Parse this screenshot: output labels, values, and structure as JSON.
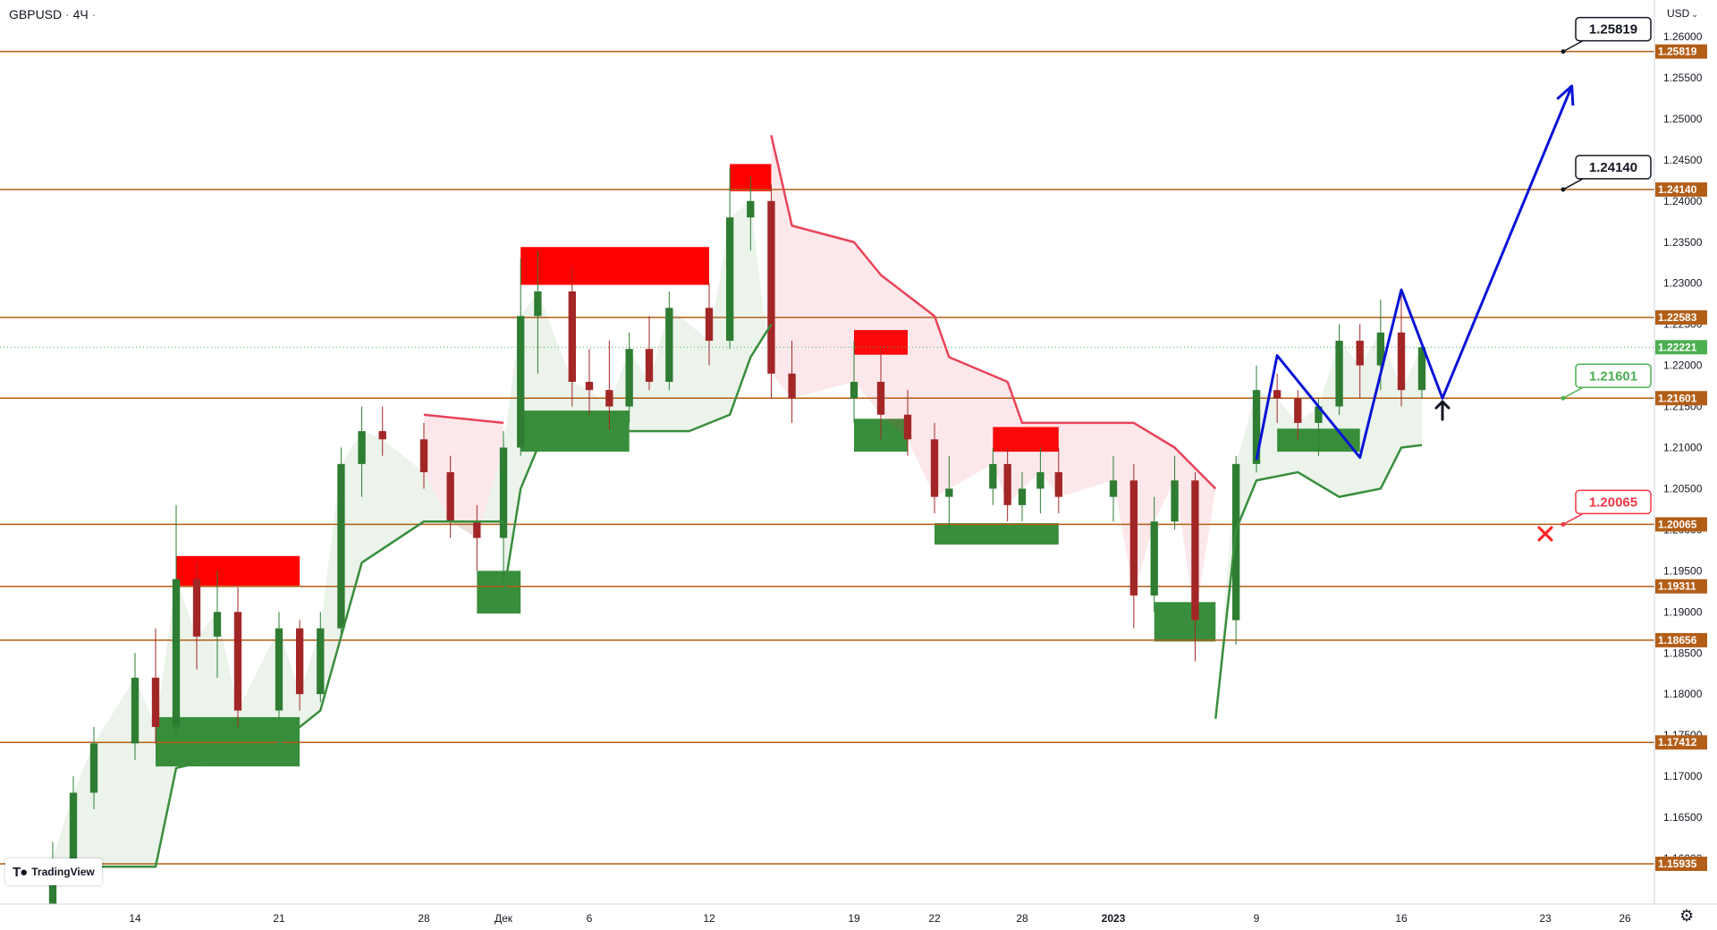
{
  "header": {
    "symbol": "GBPUSD",
    "timeframe": "4Ч"
  },
  "currency_menu": {
    "label": "USD"
  },
  "branding": {
    "logo_text": "TradingView"
  },
  "colors": {
    "level_line": "#b35e17",
    "price_tag": "#b35e17",
    "supply_zone": "#ff0000",
    "demand_zone": "#388e3c",
    "trail_up": "#388e3c",
    "trail_down": "#e84359",
    "projection": "#0a14d6",
    "candle_up": "#2e7d32",
    "candle_down": "#a32626"
  },
  "chart_data": {
    "type": "candlestick",
    "title": "GBPUSD · 4Ч",
    "y_range": [
      1.155,
      1.262
    ],
    "y_ticks": [
      "1.16000",
      "1.16500",
      "1.17000",
      "1.17500",
      "1.18000",
      "1.18500",
      "1.19000",
      "1.19500",
      "1.20000",
      "1.20500",
      "1.21000",
      "1.21500",
      "1.22000",
      "1.22500",
      "1.23000",
      "1.23500",
      "1.24000",
      "1.24500",
      "1.25000",
      "1.25500",
      "1.26000"
    ],
    "x_ticks": [
      "14",
      "21",
      "28",
      "Дек",
      "6",
      "12",
      "19",
      "22",
      "28",
      "2023",
      "9",
      "16",
      "23",
      "26"
    ],
    "levels": [
      {
        "value": 1.25819,
        "label": "1.25819"
      },
      {
        "value": 1.2414,
        "label": "1.24140"
      },
      {
        "value": 1.22583,
        "label": "1.22583"
      },
      {
        "value": 1.21601,
        "label": "1.21601"
      },
      {
        "value": 1.20065,
        "label": "1.20065"
      },
      {
        "value": 1.19311,
        "label": "1.19311"
      },
      {
        "value": 1.18656,
        "label": "1.18656"
      },
      {
        "value": 1.17412,
        "label": "1.17412"
      },
      {
        "value": 1.15935,
        "label": "1.15935"
      }
    ],
    "current_price": {
      "value": 1.22221,
      "label": "1.22221"
    },
    "callouts": [
      {
        "value": 1.25819,
        "label": "1.25819",
        "style": "black"
      },
      {
        "value": 1.2414,
        "label": "1.24140",
        "style": "black"
      },
      {
        "value": 1.21601,
        "label": "1.21601",
        "style": "green"
      },
      {
        "value": 1.20065,
        "label": "1.20065",
        "style": "red"
      }
    ],
    "supply_zones": [
      {
        "x_range": [
          "Nov 16",
          "Nov 22"
        ],
        "price_range": [
          1.1932,
          1.1968
        ]
      },
      {
        "x_range": [
          "Dec 2",
          "Dec 12"
        ],
        "price_range": [
          1.2298,
          1.2344
        ]
      },
      {
        "x_range": [
          "Dec 13",
          "Dec 15"
        ],
        "price_range": [
          1.2412,
          1.2445
        ]
      },
      {
        "x_range": [
          "Dec 19",
          "Dec 21"
        ],
        "price_range": [
          1.2213,
          1.2243
        ]
      },
      {
        "x_range": [
          "Dec 26",
          "Dec 30"
        ],
        "price_range": [
          1.2095,
          1.2125
        ]
      }
    ],
    "demand_zones": [
      {
        "x_range": [
          "Nov 15",
          "Nov 22"
        ],
        "price_range": [
          1.1712,
          1.1772
        ]
      },
      {
        "x_range": [
          "Nov 30",
          "Dec 2"
        ],
        "price_range": [
          1.1898,
          1.195
        ]
      },
      {
        "x_range": [
          "Dec 2",
          "Dec 8"
        ],
        "price_range": [
          1.2095,
          1.2145
        ]
      },
      {
        "x_range": [
          "Dec 19",
          "Dec 21"
        ],
        "price_range": [
          1.2095,
          1.2135
        ]
      },
      {
        "x_range": [
          "Dec 22",
          "Dec 30"
        ],
        "price_range": [
          1.1982,
          1.2008
        ]
      },
      {
        "x_range": [
          "Jan 4",
          "Jan 7"
        ],
        "price_range": [
          1.1864,
          1.1912
        ]
      },
      {
        "x_range": [
          "Jan 10",
          "Jan 14"
        ],
        "price_range": [
          1.2095,
          1.2123
        ]
      }
    ],
    "projection_path": [
      {
        "t": "Jan 9",
        "price": 1.2085
      },
      {
        "t": "Jan 10",
        "price": 1.2212
      },
      {
        "t": "Jan 14",
        "price": 1.2088
      },
      {
        "t": "Jan 16",
        "price": 1.2292
      },
      {
        "t": "Jan 18",
        "price": 1.216
      },
      {
        "t": "Jan 24",
        "price": 1.254
      }
    ],
    "markers": [
      {
        "type": "arrow-up",
        "t": "Jan 18",
        "price": 1.2145
      },
      {
        "type": "cross",
        "t": "Jan 23",
        "price": 1.1995
      }
    ],
    "candles_approx": [
      {
        "t": "Nov 10",
        "o": 1.152,
        "h": 1.162,
        "l": 1.15,
        "c": 1.16
      },
      {
        "t": "Nov 11",
        "o": 1.16,
        "h": 1.17,
        "l": 1.158,
        "c": 1.168
      },
      {
        "t": "Nov 12",
        "o": 1.168,
        "h": 1.176,
        "l": 1.166,
        "c": 1.174
      },
      {
        "t": "Nov 14",
        "o": 1.174,
        "h": 1.185,
        "l": 1.172,
        "c": 1.182
      },
      {
        "t": "Nov 15",
        "o": 1.182,
        "h": 1.188,
        "l": 1.174,
        "c": 1.176
      },
      {
        "t": "Nov 16",
        "o": 1.176,
        "h": 1.203,
        "l": 1.175,
        "c": 1.194
      },
      {
        "t": "Nov 17",
        "o": 1.194,
        "h": 1.196,
        "l": 1.183,
        "c": 1.187
      },
      {
        "t": "Nov 18",
        "o": 1.187,
        "h": 1.195,
        "l": 1.182,
        "c": 1.19
      },
      {
        "t": "Nov 19",
        "o": 1.19,
        "h": 1.193,
        "l": 1.176,
        "c": 1.178
      },
      {
        "t": "Nov 21",
        "o": 1.178,
        "h": 1.19,
        "l": 1.177,
        "c": 1.188
      },
      {
        "t": "Nov 22",
        "o": 1.188,
        "h": 1.189,
        "l": 1.178,
        "c": 1.18
      },
      {
        "t": "Nov 23",
        "o": 1.18,
        "h": 1.19,
        "l": 1.179,
        "c": 1.188
      },
      {
        "t": "Nov 24",
        "o": 1.188,
        "h": 1.21,
        "l": 1.187,
        "c": 1.208
      },
      {
        "t": "Nov 25",
        "o": 1.208,
        "h": 1.215,
        "l": 1.204,
        "c": 1.212
      },
      {
        "t": "Nov 26",
        "o": 1.212,
        "h": 1.215,
        "l": 1.209,
        "c": 1.211
      },
      {
        "t": "Nov 28",
        "o": 1.211,
        "h": 1.213,
        "l": 1.205,
        "c": 1.207
      },
      {
        "t": "Nov 29",
        "o": 1.207,
        "h": 1.209,
        "l": 1.199,
        "c": 1.201
      },
      {
        "t": "Nov 30",
        "o": 1.201,
        "h": 1.203,
        "l": 1.195,
        "c": 1.199
      },
      {
        "t": "Dec 1",
        "o": 1.199,
        "h": 1.212,
        "l": 1.194,
        "c": 1.21
      },
      {
        "t": "Dec 2",
        "o": 1.21,
        "h": 1.233,
        "l": 1.209,
        "c": 1.226
      },
      {
        "t": "Dec 3",
        "o": 1.226,
        "h": 1.234,
        "l": 1.219,
        "c": 1.229
      },
      {
        "t": "Dec 5",
        "o": 1.229,
        "h": 1.232,
        "l": 1.215,
        "c": 1.218
      },
      {
        "t": "Dec 6",
        "o": 1.218,
        "h": 1.222,
        "l": 1.214,
        "c": 1.217
      },
      {
        "t": "Dec 7",
        "o": 1.217,
        "h": 1.223,
        "l": 1.212,
        "c": 1.215
      },
      {
        "t": "Dec 8",
        "o": 1.215,
        "h": 1.224,
        "l": 1.213,
        "c": 1.222
      },
      {
        "t": "Dec 9",
        "o": 1.222,
        "h": 1.226,
        "l": 1.217,
        "c": 1.218
      },
      {
        "t": "Dec 10",
        "o": 1.218,
        "h": 1.229,
        "l": 1.217,
        "c": 1.227
      },
      {
        "t": "Dec 12",
        "o": 1.227,
        "h": 1.23,
        "l": 1.22,
        "c": 1.223
      },
      {
        "t": "Dec 13",
        "o": 1.223,
        "h": 1.244,
        "l": 1.222,
        "c": 1.238
      },
      {
        "t": "Dec 14",
        "o": 1.238,
        "h": 1.243,
        "l": 1.234,
        "c": 1.24
      },
      {
        "t": "Dec 15",
        "o": 1.24,
        "h": 1.242,
        "l": 1.216,
        "c": 1.219
      },
      {
        "t": "Dec 16",
        "o": 1.219,
        "h": 1.223,
        "l": 1.213,
        "c": 1.216
      },
      {
        "t": "Dec 19",
        "o": 1.216,
        "h": 1.223,
        "l": 1.213,
        "c": 1.218
      },
      {
        "t": "Dec 20",
        "o": 1.218,
        "h": 1.222,
        "l": 1.211,
        "c": 1.214
      },
      {
        "t": "Dec 21",
        "o": 1.214,
        "h": 1.217,
        "l": 1.209,
        "c": 1.211
      },
      {
        "t": "Dec 22",
        "o": 1.211,
        "h": 1.213,
        "l": 1.202,
        "c": 1.204
      },
      {
        "t": "Dec 23",
        "o": 1.204,
        "h": 1.209,
        "l": 1.2,
        "c": 1.205
      },
      {
        "t": "Dec 26",
        "o": 1.205,
        "h": 1.21,
        "l": 1.203,
        "c": 1.208
      },
      {
        "t": "Dec 27",
        "o": 1.208,
        "h": 1.21,
        "l": 1.201,
        "c": 1.203
      },
      {
        "t": "Dec 28",
        "o": 1.203,
        "h": 1.207,
        "l": 1.201,
        "c": 1.205
      },
      {
        "t": "Dec 29",
        "o": 1.205,
        "h": 1.21,
        "l": 1.202,
        "c": 1.207
      },
      {
        "t": "Dec 30",
        "o": 1.207,
        "h": 1.21,
        "l": 1.202,
        "c": 1.204
      },
      {
        "t": "Jan 2",
        "o": 1.204,
        "h": 1.209,
        "l": 1.201,
        "c": 1.206
      },
      {
        "t": "Jan 3",
        "o": 1.206,
        "h": 1.208,
        "l": 1.188,
        "c": 1.192
      },
      {
        "t": "Jan 4",
        "o": 1.192,
        "h": 1.204,
        "l": 1.19,
        "c": 1.201
      },
      {
        "t": "Jan 5",
        "o": 1.201,
        "h": 1.209,
        "l": 1.2,
        "c": 1.206
      },
      {
        "t": "Jan 6",
        "o": 1.206,
        "h": 1.207,
        "l": 1.184,
        "c": 1.189
      },
      {
        "t": "Jan 8",
        "o": 1.189,
        "h": 1.209,
        "l": 1.186,
        "c": 1.208
      },
      {
        "t": "Jan 9",
        "o": 1.208,
        "h": 1.22,
        "l": 1.207,
        "c": 1.217
      },
      {
        "t": "Jan 10",
        "o": 1.217,
        "h": 1.219,
        "l": 1.213,
        "c": 1.216
      },
      {
        "t": "Jan 11",
        "o": 1.216,
        "h": 1.217,
        "l": 1.211,
        "c": 1.213
      },
      {
        "t": "Jan 12",
        "o": 1.213,
        "h": 1.216,
        "l": 1.209,
        "c": 1.215
      },
      {
        "t": "Jan 13",
        "o": 1.215,
        "h": 1.225,
        "l": 1.214,
        "c": 1.223
      },
      {
        "t": "Jan 14",
        "o": 1.223,
        "h": 1.225,
        "l": 1.216,
        "c": 1.22
      },
      {
        "t": "Jan 15",
        "o": 1.22,
        "h": 1.228,
        "l": 1.217,
        "c": 1.224
      },
      {
        "t": "Jan 16",
        "o": 1.224,
        "h": 1.229,
        "l": 1.215,
        "c": 1.217
      },
      {
        "t": "Jan 17",
        "o": 1.217,
        "h": 1.223,
        "l": 1.216,
        "c": 1.2222
      }
    ],
    "trail_segments_approx": [
      {
        "dir": "up",
        "points": [
          [
            "Nov 10",
            1.159
          ],
          [
            "Nov 15",
            1.159
          ],
          [
            "Nov 16",
            1.171
          ],
          [
            "Nov 21",
            1.174
          ],
          [
            "Nov 23",
            1.178
          ],
          [
            "Nov 25",
            1.196
          ],
          [
            "Nov 28",
            1.201
          ],
          [
            "Dec 1",
            1.201
          ]
        ]
      },
      {
        "dir": "down",
        "points": [
          [
            "Nov 28",
            1.214
          ],
          [
            "Dec 1",
            1.213
          ]
        ]
      },
      {
        "dir": "up",
        "points": [
          [
            "Dec 1",
            1.192
          ],
          [
            "Dec 2",
            1.205
          ],
          [
            "Dec 3",
            1.21
          ],
          [
            "Dec 6",
            1.212
          ],
          [
            "Dec 11",
            1.212
          ],
          [
            "Dec 13",
            1.214
          ],
          [
            "Dec 14",
            1.221
          ],
          [
            "Dec 15",
            1.225
          ]
        ]
      },
      {
        "dir": "down",
        "points": [
          [
            "Dec 15",
            1.248
          ],
          [
            "Dec 16",
            1.237
          ],
          [
            "Dec 19",
            1.235
          ],
          [
            "Dec 20",
            1.231
          ],
          [
            "Dec 22",
            1.226
          ],
          [
            "Dec 23",
            1.221
          ],
          [
            "Dec 27",
            1.218
          ],
          [
            "Dec 28",
            1.213
          ],
          [
            "Jan 3",
            1.213
          ],
          [
            "Jan 5",
            1.21
          ],
          [
            "Jan 7",
            1.205
          ]
        ]
      },
      {
        "dir": "up",
        "points": [
          [
            "Jan 7",
            1.177
          ],
          [
            "Jan 8",
            1.2
          ],
          [
            "Jan 9",
            1.206
          ],
          [
            "Jan 11",
            1.207
          ],
          [
            "Jan 13",
            1.204
          ],
          [
            "Jan 15",
            1.205
          ],
          [
            "Jan 16",
            1.21
          ],
          [
            "Jan 17",
            1.2103
          ]
        ]
      }
    ]
  }
}
